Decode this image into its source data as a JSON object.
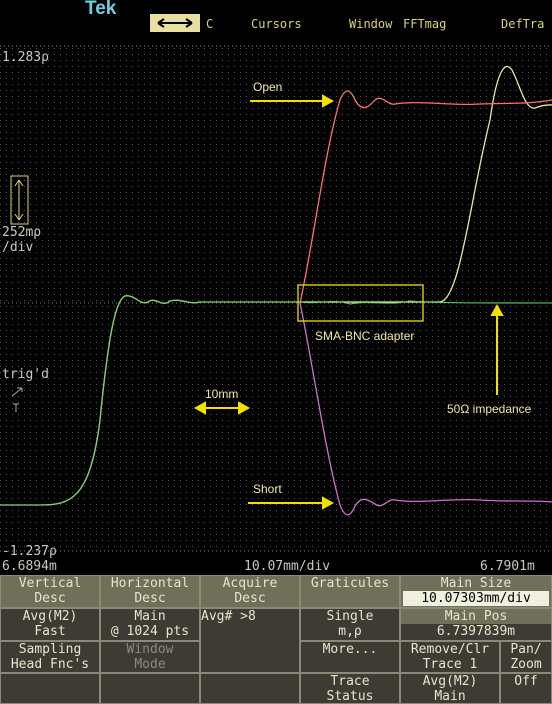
{
  "toolbar": {
    "brand": "Tek",
    "items": [
      "C",
      "Cursors",
      "Window",
      "FFTmag",
      "DefTra"
    ]
  },
  "display": {
    "top_value": "1.283ρ",
    "scale": "252mρ",
    "scale_unit": "/div",
    "trigger": "trig'd",
    "bottom_value": "-1.237ρ",
    "x_start": "6.6894m",
    "x_scale": "10.07mm/div",
    "x_end": "6.7901m"
  },
  "annotations": {
    "open": "Open",
    "short": "Short",
    "length": "10mm",
    "adapter": "SMA-BNC adapter",
    "impedance": "50Ω impedance"
  },
  "menu": {
    "vertical": [
      "Vertical",
      "Desc"
    ],
    "horizontal": [
      "Horizontal",
      "Desc"
    ],
    "acquire": [
      "Acquire",
      "Desc"
    ],
    "graticules": "Graticules",
    "main_size": "Main Size",
    "main_size_value": "10.07303mm/div",
    "avg": [
      "Avg(M2)",
      "Fast"
    ],
    "main": [
      "Main",
      "@ 1024 pts"
    ],
    "avg_count": "Avg# >8",
    "single": [
      "Single",
      "m,ρ"
    ],
    "main_pos": "Main Pos",
    "main_pos_value": "6.7397839m",
    "sampling": [
      "Sampling",
      "Head Fnc's"
    ],
    "window_mode": [
      "Window",
      "Mode"
    ],
    "more": "More...",
    "remove": [
      "Remove/Clr",
      "Trace 1"
    ],
    "pan": [
      "Pan/",
      "Zoom"
    ],
    "trace_status": [
      "Trace",
      "Status"
    ],
    "avg_main": [
      "Avg(M2)",
      "Main"
    ],
    "off": "Off"
  }
}
